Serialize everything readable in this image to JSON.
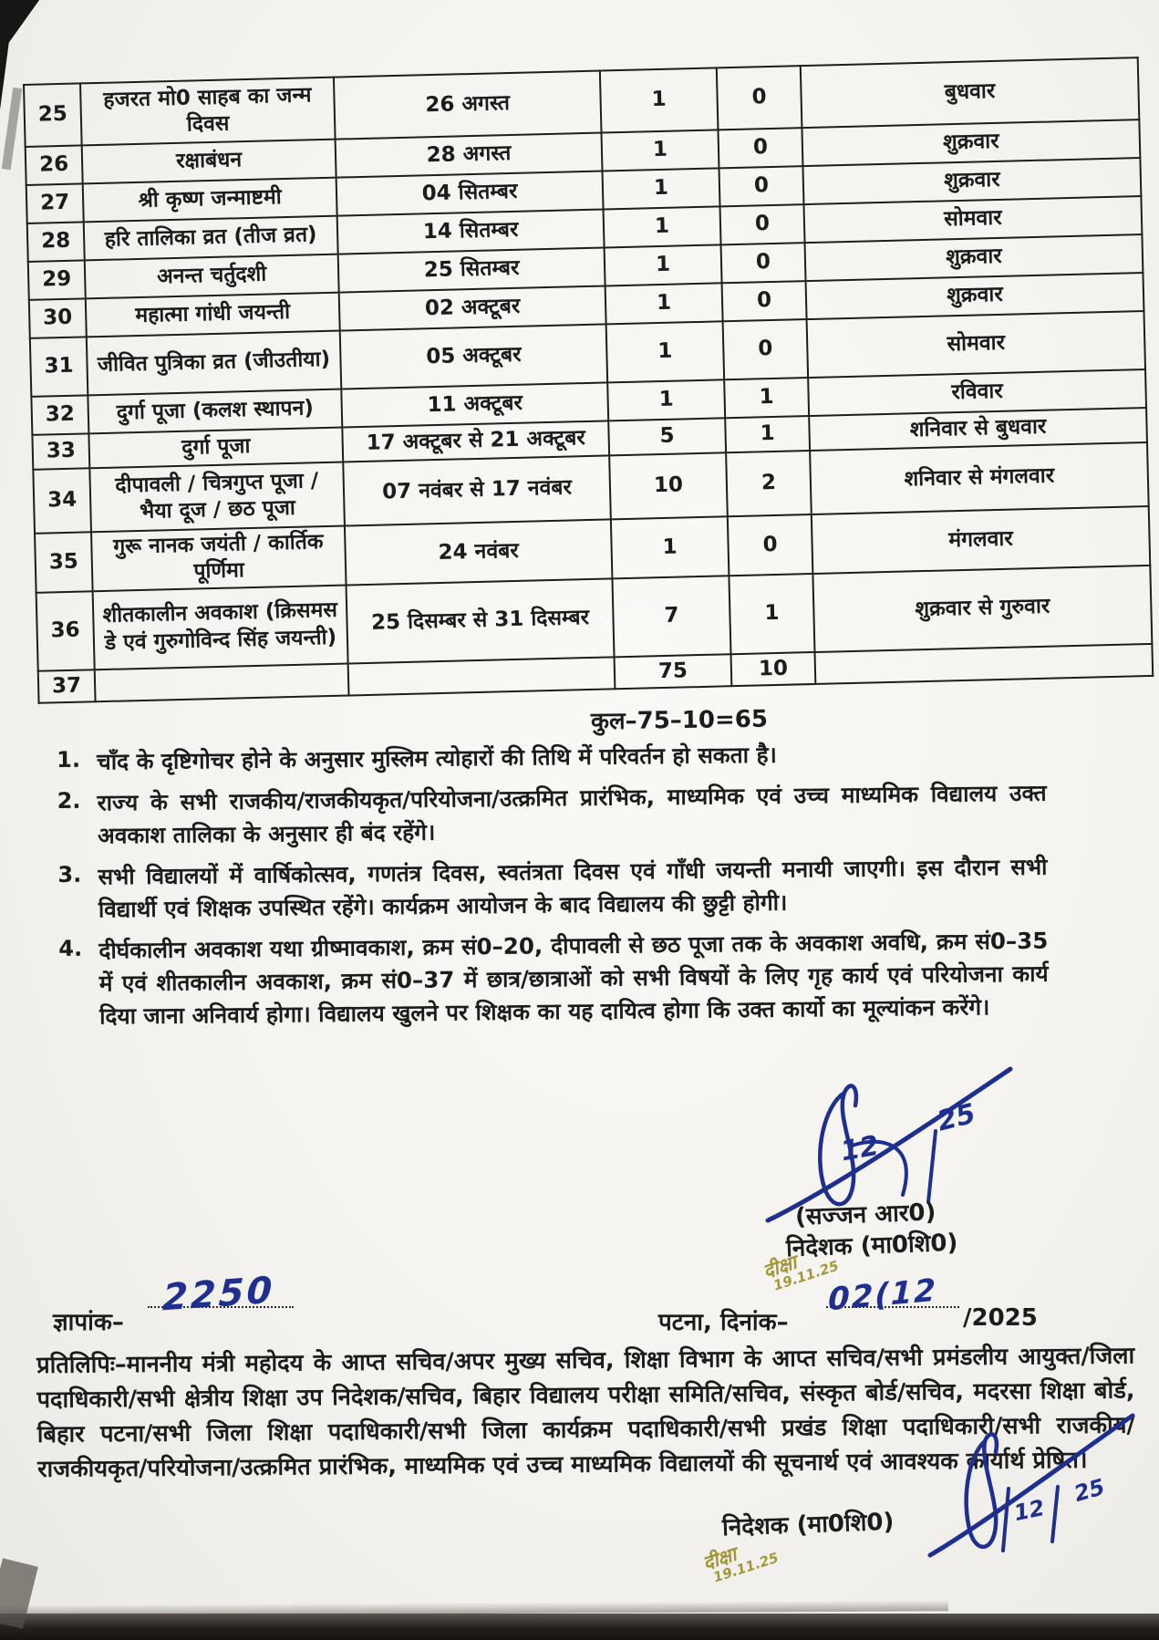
{
  "table": {
    "rows": [
      {
        "sn": "25",
        "name": "हजरत मो0 साहब का जन्म दिवस",
        "date": "26 अगस्त",
        "days": "1",
        "festival_days": "0",
        "weekday": "बुधवार"
      },
      {
        "sn": "26",
        "name": "रक्षाबंधन",
        "date": "28 अगस्त",
        "days": "1",
        "festival_days": "0",
        "weekday": "शुक्रवार"
      },
      {
        "sn": "27",
        "name": "श्री कृष्ण जन्माष्टमी",
        "date": "04 सितम्बर",
        "days": "1",
        "festival_days": "0",
        "weekday": "शुक्रवार"
      },
      {
        "sn": "28",
        "name": "हरि तालिका व्रत (तीज व्रत)",
        "date": "14 सितम्बर",
        "days": "1",
        "festival_days": "0",
        "weekday": "सोमवार"
      },
      {
        "sn": "29",
        "name": "अनन्त चर्तुदशी",
        "date": "25 सितम्बर",
        "days": "1",
        "festival_days": "0",
        "weekday": "शुक्रवार"
      },
      {
        "sn": "30",
        "name": "महात्मा गांधी जयन्ती",
        "date": "02 अक्टूबर",
        "days": "1",
        "festival_days": "0",
        "weekday": "शुक्रवार"
      },
      {
        "sn": "31",
        "name": "जीवित पुत्रिका व्रत (जीउतीया)",
        "date": "05 अक्टूबर",
        "days": "1",
        "festival_days": "0",
        "weekday": "सोमवार"
      },
      {
        "sn": "32",
        "name": "दुर्गा पूजा (कलश स्थापन)",
        "date": "11 अक्टूबर",
        "days": "1",
        "festival_days": "1",
        "weekday": "रविवार"
      },
      {
        "sn": "33",
        "name": "दुर्गा पूजा",
        "date": "17 अक्टूबर से 21 अक्टूबर",
        "days": "5",
        "festival_days": "1",
        "weekday": "शनिवार से बुधवार"
      },
      {
        "sn": "34",
        "name": "दीपावली / चित्रगुप्त पूजा / भैया दूज / छठ पूजा",
        "date": "07 नवंबर से 17 नवंबर",
        "days": "10",
        "festival_days": "2",
        "weekday": "शनिवार से मंगलवार"
      },
      {
        "sn": "35",
        "name": "गुरू नानक जयंती / कार्तिक पूर्णिमा",
        "date": "24 नवंबर",
        "days": "1",
        "festival_days": "0",
        "weekday": "मंगलवार"
      },
      {
        "sn": "36",
        "name": "शीतकालीन अवकाश (क्रिसमस डे एवं गुरुगोविन्द सिंह जयन्ती)",
        "date": "25 दिसम्बर से 31 दिसम्बर",
        "days": "7",
        "festival_days": "1",
        "weekday": "शुक्रवार से गुरुवार"
      },
      {
        "sn": "37",
        "name": "",
        "date": "",
        "days": "75",
        "festival_days": "10",
        "weekday": ""
      }
    ]
  },
  "total_line": "कुल–75–10=65",
  "notes": [
    {
      "num": "1.",
      "text": "चाँद के दृष्टिगोचर होने के अनुसार मुस्लिम त्योहारों की तिथि में परिवर्तन हो सकता है।"
    },
    {
      "num": "2.",
      "text": "राज्य के सभी राजकीय/राजकीयकृत/परियोजना/उत्क्रमित प्रारंभिक, माध्यमिक एवं उच्च माध्यमिक विद्यालय उक्त अवकाश तालिका के अनुसार ही बंद रहेंगे।"
    },
    {
      "num": "3.",
      "text": "सभी विद्यालयों में वार्षिकोत्सव, गणतंत्र दिवस, स्वतंत्रता दिवस एवं गाँधी जयन्ती मनायी जाएगी। इस दौरान सभी विद्यार्थी एवं शिक्षक उपस्थित रहेंगे। कार्यक्रम आयोजन के बाद विद्यालय की छुट्टी होगी।"
    },
    {
      "num": "4.",
      "text": "दीर्घकालीन अवकाश यथा ग्रीष्मावकाश, क्रम सं0–20, दीपावली से छठ पूजा तक के अवकाश अवधि, क्रम सं0–35 में एवं शीतकालीन अवकाश, क्रम सं0–37 में छात्र/छात्राओं को सभी विषयों के लिए गृह कार्य एवं परियोजना कार्य दिया जाना अनिवार्य होगा। विद्यालय खुलने पर शिक्षक का यह दायित्व होगा कि उक्त कार्यो का मूल्यांकन करेंगे।"
    }
  ],
  "signature": {
    "name": "(सज्जन आर0)",
    "title": "निदेशक (मा0शि0)",
    "inline_day": "12",
    "inline_year": "25",
    "stamp_word": "दीक्षा",
    "stamp_date": "19.11.25"
  },
  "footer": {
    "memo_label": "ज्ञापांक–",
    "memo_number": "2250",
    "place_date_label": "पटना, दिनांक–",
    "date_handwritten": "02(12",
    "year_printed": "/2025",
    "copy_to": "प्रतिलिपिः–माननीय मंत्री महोदय के आप्त सचिव/अपर मुख्य सचिव, शिक्षा विभाग के आप्त सचिव/सभी प्रमंडलीय आयुक्त/जिला पदाधिकारी/सभी क्षेत्रीय शिक्षा उप निदेशक/सचिव, बिहार विद्यालय परीक्षा समिति/सचिव, संस्कृत बोर्ड/सचिव, मदरसा शिक्षा बोर्ड, बिहार पटना/सभी जिला शिक्षा पदाधिकारी/सभी जिला कार्यक्रम पदाधिकारी/सभी प्रखंड शिक्षा पदाधिकारी/सभी राजकीय/राजकीयकृत/परियोजना/उत्क्रमित प्रारंभिक, माध्यमिक एवं उच्च माध्यमिक विद्यालयों की सूचनार्थ एवं आवश्यक कार्यार्थ प्रेषित।",
    "title_2": "निदेशक (मा0शि0)"
  }
}
